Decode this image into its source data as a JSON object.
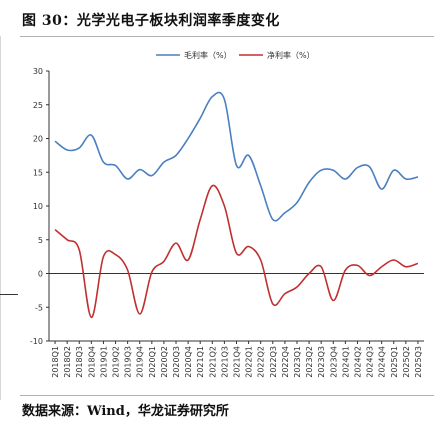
{
  "header": {
    "title": "图 30：光学光电子板块利润率季度变化"
  },
  "footer": {
    "source": "数据来源：Wind，华龙证券研究所"
  },
  "colors": {
    "gross": "#4a7fc1",
    "net": "#c0302f",
    "axis": "#333333"
  },
  "chart_data": {
    "type": "line",
    "title": "",
    "xlabel": "",
    "ylabel": "",
    "ylim": [
      -10,
      30
    ],
    "yticks": [
      -10,
      -5,
      0,
      5,
      10,
      15,
      20,
      25,
      30
    ],
    "legend_position": "top-center",
    "grid": false,
    "categories": [
      "2018Q1",
      "2018Q2",
      "2018Q3",
      "2018Q4",
      "2019Q1",
      "2019Q2",
      "2019Q3",
      "2019Q4",
      "2020Q1",
      "2020Q2",
      "2020Q3",
      "2020Q4",
      "2021Q1",
      "2021Q2",
      "2021Q3",
      "2021Q4",
      "2022Q1",
      "2022Q2",
      "2022Q3",
      "2022Q4",
      "2023Q1",
      "2023Q2",
      "2023Q3",
      "2023Q4",
      "2024Q1",
      "2024Q2",
      "2024Q3",
      "2024Q4",
      "2025Q1",
      "2025Q2",
      "2025Q3"
    ],
    "series": [
      {
        "name": "毛利率（%）",
        "color": "#4a7fc1",
        "values": [
          19.6,
          18.3,
          18.6,
          20.5,
          16.5,
          16.0,
          14.0,
          15.4,
          14.5,
          16.5,
          17.5,
          20.0,
          23.0,
          26.2,
          25.8,
          16.0,
          17.5,
          13.0,
          8.0,
          9.0,
          10.5,
          13.5,
          15.3,
          15.3,
          14.0,
          15.7,
          15.8,
          12.5,
          15.3,
          14.0,
          14.3
        ]
      },
      {
        "name": "净利率（%）",
        "color": "#c0302f",
        "values": [
          6.5,
          5.0,
          3.5,
          -6.5,
          2.5,
          2.8,
          0.5,
          -6.0,
          0.2,
          1.8,
          4.5,
          2.0,
          8.0,
          13.0,
          10.0,
          3.0,
          4.0,
          2.0,
          -4.5,
          -3.0,
          -2.0,
          0.0,
          1.0,
          -4.0,
          0.5,
          1.2,
          -0.3,
          1.0,
          2.0,
          1.0,
          1.5
        ]
      }
    ]
  }
}
